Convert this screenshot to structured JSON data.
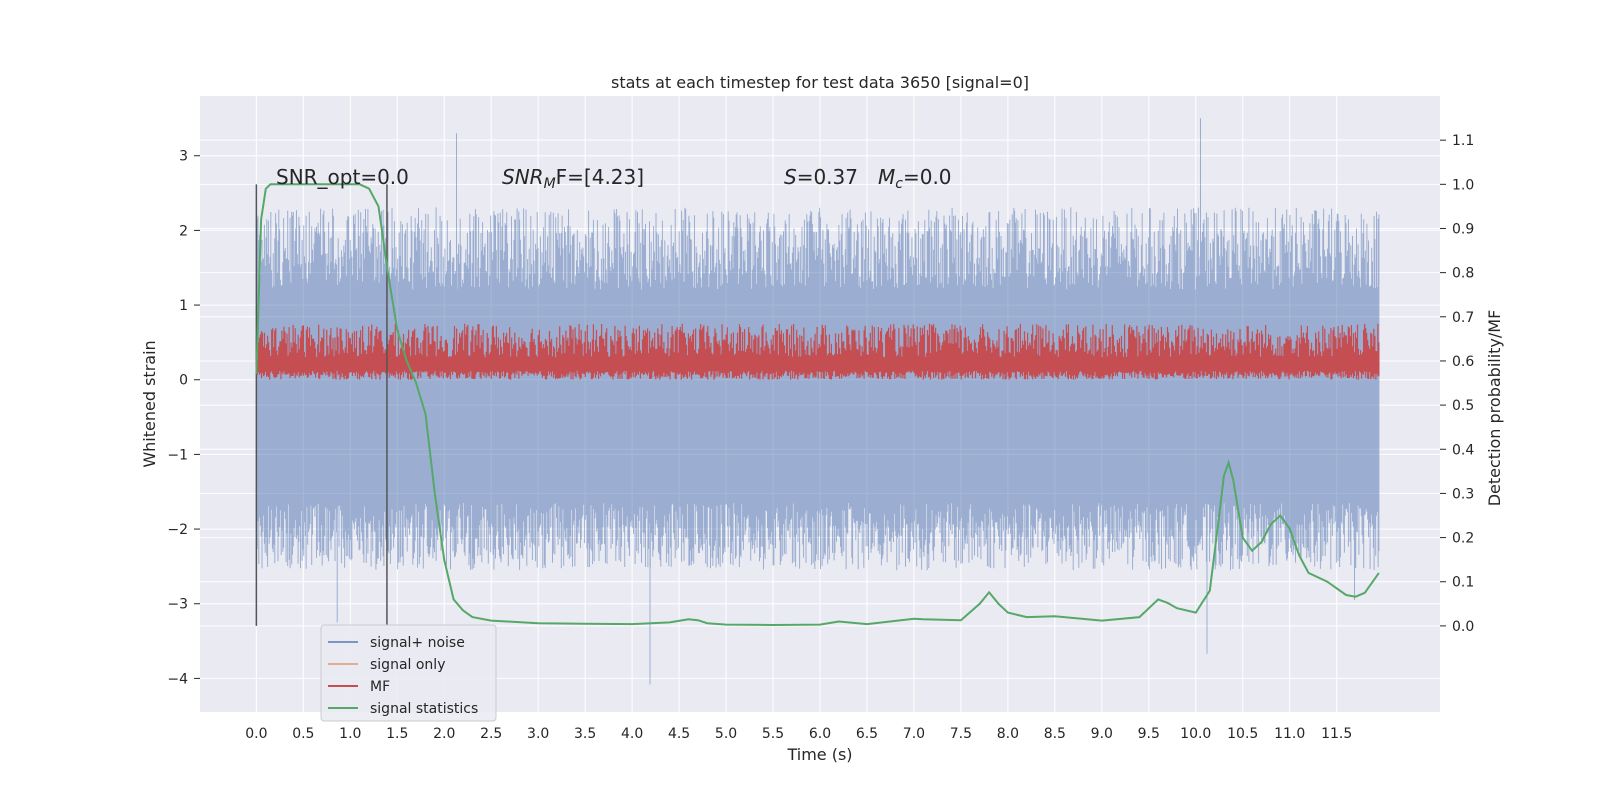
{
  "chart_data": {
    "type": "line",
    "title": "stats at each timestep for test data 3650 [signal=0]",
    "xlabel": "Time (s)",
    "ylabel": "Whitened strain",
    "y2label": "Detection probability/MF",
    "xlim": [
      -0.6,
      12.6
    ],
    "ylim": [
      -4.45,
      3.8
    ],
    "y2lim": [
      -0.195,
      1.2
    ],
    "xticks": [
      0.0,
      0.5,
      1.0,
      1.5,
      2.0,
      2.5,
      3.0,
      3.5,
      4.0,
      4.5,
      5.0,
      5.5,
      6.0,
      6.5,
      7.0,
      7.5,
      8.0,
      8.5,
      9.0,
      9.5,
      10.0,
      10.5,
      11.0,
      11.5
    ],
    "xtick_labels": [
      "0.0",
      "0.5",
      "1.0",
      "1.5",
      "2.0",
      "2.5",
      "3.0",
      "3.5",
      "4.0",
      "4.5",
      "5.0",
      "5.5",
      "6.0",
      "6.5",
      "7.0",
      "7.5",
      "8.0",
      "8.5",
      "9.0",
      "9.5",
      "10.0",
      "10.5",
      "11.0",
      "11.5"
    ],
    "yticks": [
      -4,
      -3,
      -2,
      -1,
      0,
      1,
      2,
      3
    ],
    "ytick_labels": [
      "−4",
      "−3",
      "−2",
      "−1",
      "0",
      "1",
      "2",
      "3"
    ],
    "y2ticks": [
      0.0,
      0.1,
      0.2,
      0.3,
      0.4,
      0.5,
      0.6,
      0.7,
      0.8,
      0.9,
      1.0,
      1.1
    ],
    "y2tick_labels": [
      "0.0",
      "0.1",
      "0.2",
      "0.3",
      "0.4",
      "0.5",
      "0.6",
      "0.7",
      "0.8",
      "0.9",
      "1.0",
      "1.1"
    ],
    "grid": true,
    "legend_position": "bottom-left",
    "colors": {
      "background": "#eaeaf2",
      "grid": "#ffffff",
      "signal_noise": "#4c72b0",
      "signal_only": "#dd8452",
      "mf": "#c44e52",
      "statistics": "#55a868",
      "vline": "#555555"
    },
    "annotations": {
      "snr_opt": "SNR_opt=0.0",
      "snr_mf_italic": "SNR",
      "snr_mf_sub": "M",
      "snr_mf_rest": "F=[4.23]",
      "s_italic": "S",
      "s_rest": "=0.37",
      "mc_italic": "M",
      "mc_sub": "c",
      "mc_rest": "=0.0"
    },
    "vlines": [
      0.0,
      1.39
    ],
    "signal_noise_envelope": {
      "x_range": [
        0.0,
        11.95
      ],
      "typical_min": -2.1,
      "typical_max": 2.2,
      "extremes": [
        {
          "x": 0.86,
          "y": -3.25
        },
        {
          "x": 2.13,
          "y": 3.3
        },
        {
          "x": 4.19,
          "y": -4.08
        },
        {
          "x": 10.05,
          "y": 3.5
        },
        {
          "x": 10.12,
          "y": -3.67
        },
        {
          "x": 11.69,
          "y": -2.95
        }
      ]
    },
    "mf_band": {
      "typical_min": 0.0,
      "typical_max": 0.75
    },
    "series": [
      {
        "name": "signal statistics",
        "x": [
          0.0,
          0.05,
          0.1,
          0.15,
          0.2,
          0.3,
          0.5,
          0.8,
          1.0,
          1.1,
          1.2,
          1.3,
          1.4,
          1.5,
          1.6,
          1.7,
          1.8,
          1.9,
          2.0,
          2.1,
          2.2,
          2.3,
          2.5,
          3.0,
          3.5,
          4.0,
          4.4,
          4.6,
          4.7,
          4.8,
          5.0,
          5.5,
          6.0,
          6.2,
          6.5,
          7.0,
          7.1,
          7.5,
          7.7,
          7.8,
          7.9,
          8.0,
          8.2,
          8.5,
          9.0,
          9.4,
          9.6,
          9.7,
          9.8,
          10.0,
          10.15,
          10.25,
          10.3,
          10.35,
          10.4,
          10.5,
          10.6,
          10.7,
          10.8,
          10.9,
          11.0,
          11.1,
          11.2,
          11.4,
          11.6,
          11.7,
          11.8,
          11.95
        ],
        "y": [
          0.57,
          0.92,
          0.99,
          1.0,
          1.0,
          1.0,
          1.0,
          1.0,
          1.0,
          1.0,
          0.99,
          0.95,
          0.8,
          0.67,
          0.6,
          0.55,
          0.48,
          0.3,
          0.15,
          0.06,
          0.035,
          0.02,
          0.012,
          0.006,
          0.005,
          0.004,
          0.008,
          0.015,
          0.013,
          0.006,
          0.003,
          0.002,
          0.003,
          0.01,
          0.004,
          0.016,
          0.015,
          0.013,
          0.05,
          0.076,
          0.05,
          0.03,
          0.02,
          0.022,
          0.012,
          0.02,
          0.06,
          0.052,
          0.04,
          0.03,
          0.08,
          0.25,
          0.34,
          0.37,
          0.33,
          0.2,
          0.17,
          0.19,
          0.23,
          0.25,
          0.22,
          0.16,
          0.12,
          0.1,
          0.07,
          0.066,
          0.075,
          0.12
        ]
      }
    ],
    "legend": [
      {
        "name": "signal+ noise",
        "key": "signal_noise"
      },
      {
        "name": "signal only",
        "key": "signal_only"
      },
      {
        "name": "MF",
        "key": "mf"
      },
      {
        "name": "signal statistics",
        "key": "statistics"
      }
    ]
  }
}
